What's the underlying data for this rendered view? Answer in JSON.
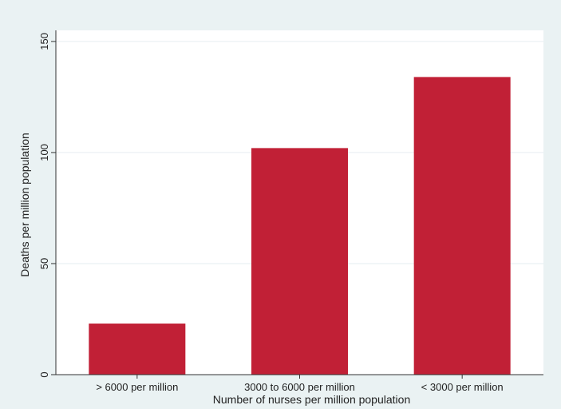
{
  "chart_data": {
    "type": "bar",
    "categories": [
      "> 6000 per million",
      "3000 to 6000 per million",
      "< 3000 per million"
    ],
    "values": [
      23,
      102,
      134
    ],
    "title": "",
    "xlabel": "Number of nurses per million population",
    "ylabel": "Deaths per million population",
    "ylim": [
      0,
      155
    ],
    "yticks": [
      0,
      50,
      100,
      150
    ],
    "grid": true,
    "legend": "none",
    "colors": {
      "bar": "#c12036",
      "plot_background": "#ffffff",
      "page_background": "#eaf2f3",
      "grid": "#e6eef0",
      "axis": "#333333"
    }
  }
}
